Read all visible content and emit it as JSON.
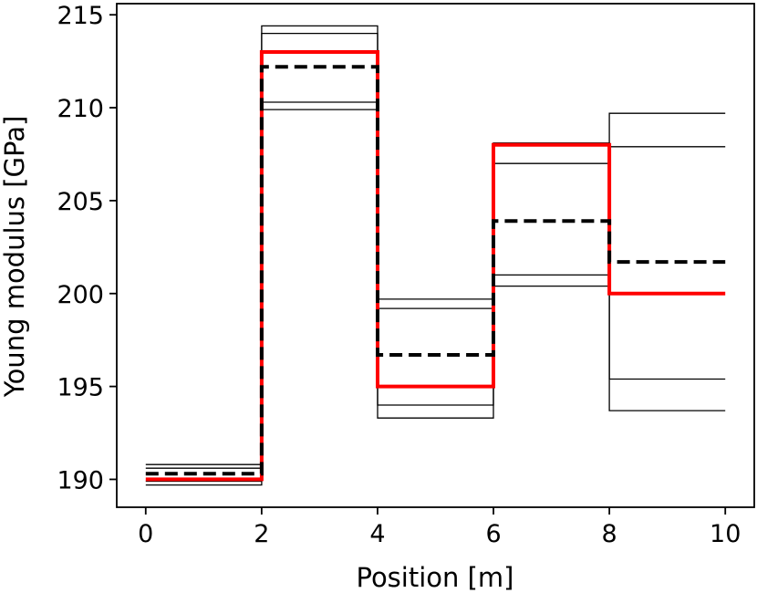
{
  "chart_data": {
    "type": "line",
    "title": "",
    "xlabel": "Position [m]",
    "ylabel": "Young modulus [GPa]",
    "xlim": [
      -0.5,
      10.5
    ],
    "ylim": [
      188.5,
      215.6
    ],
    "xticks": [
      0,
      2,
      4,
      6,
      8,
      10
    ],
    "yticks": [
      190,
      195,
      200,
      205,
      210,
      215
    ],
    "grid": false,
    "legend": "none",
    "step_breaks": [
      0,
      2,
      4,
      6,
      8,
      10
    ],
    "series": [
      {
        "role": "true-profile",
        "color": "#ff0000",
        "style": "solid",
        "values": [
          190.0,
          213.0,
          195.0,
          208.0,
          200.0
        ]
      },
      {
        "role": "mean-estimate",
        "color": "#000000",
        "style": "dashed",
        "values": [
          190.3,
          212.2,
          196.7,
          203.9,
          201.7
        ]
      },
      {
        "role": "bound-outer-upper",
        "color": "#000000",
        "style": "thin",
        "values": [
          190.8,
          214.4,
          199.7,
          201.0,
          209.7
        ]
      },
      {
        "role": "bound-inner-upper",
        "color": "#000000",
        "style": "thin",
        "values": [
          190.6,
          214.0,
          199.2,
          200.4,
          207.9
        ]
      },
      {
        "role": "bound-inner-lower",
        "color": "#000000",
        "style": "thin",
        "values": [
          189.9,
          210.3,
          194.0,
          207.0,
          195.4
        ]
      },
      {
        "role": "bound-outer-lower",
        "color": "#000000",
        "style": "thin",
        "values": [
          189.7,
          209.9,
          193.3,
          208.1,
          193.7
        ]
      }
    ]
  }
}
